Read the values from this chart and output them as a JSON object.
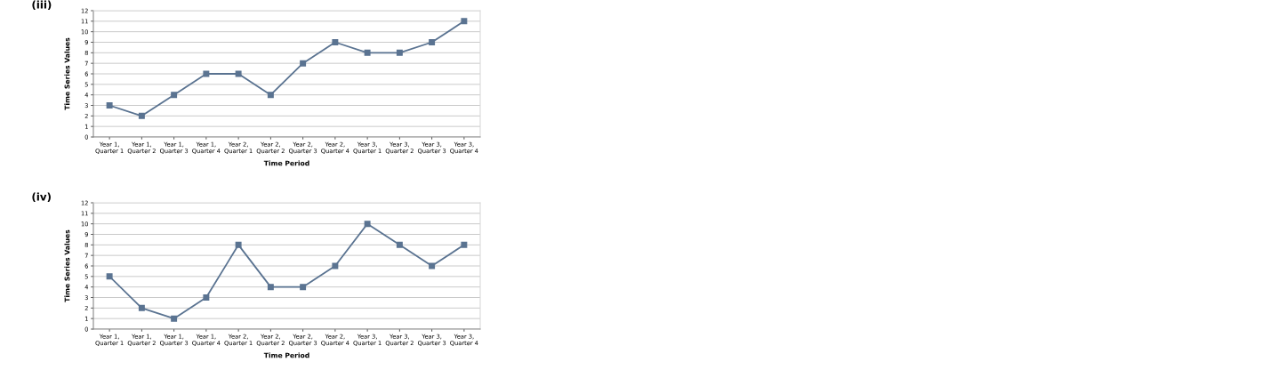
{
  "chart_data": [
    {
      "type": "line",
      "title": "(iii)",
      "xlabel": "Time Period",
      "ylabel": "Time Series Values",
      "categories": [
        "Year 1,\nQuarter 1",
        "Year 1,\nQuarter 2",
        "Year 1,\nQuarter 3",
        "Year 1,\nQuarter 4",
        "Year 2,\nQuarter 1",
        "Year 2,\nQuarter 2",
        "Year 2,\nQuarter 3",
        "Year 2,\nQuarter 4",
        "Year 3,\nQuarter 1",
        "Year 3,\nQuarter 2",
        "Year 3,\nQuarter 3",
        "Year 3,\nQuarter 4"
      ],
      "series": [
        {
          "color": "#5a7391",
          "values": [
            3,
            2,
            4,
            6,
            6,
            4,
            7,
            9,
            8,
            8,
            9,
            11
          ]
        }
      ],
      "ylim": [
        0,
        12
      ],
      "yticks": [
        0,
        1,
        2,
        3,
        4,
        5,
        6,
        7,
        8,
        9,
        10,
        11,
        12
      ],
      "grid": "y",
      "marker": "square",
      "line_style": "solid",
      "legend": false
    },
    {
      "type": "line",
      "title": "(iv)",
      "xlabel": "Time Period",
      "ylabel": "Time Series Values",
      "categories": [
        "Year 1,\nQuarter 1",
        "Year 1,\nQuarter 2",
        "Year 1,\nQuarter 3",
        "Year 1,\nQuarter 4",
        "Year 2,\nQuarter 1",
        "Year 2,\nQuarter 2",
        "Year 2,\nQuarter 3",
        "Year 2,\nQuarter 4",
        "Year 3,\nQuarter 1",
        "Year 3,\nQuarter 2",
        "Year 3,\nQuarter 3",
        "Year 3,\nQuarter 4"
      ],
      "series": [
        {
          "color": "#5a7391",
          "values": [
            5,
            2,
            1,
            3,
            8,
            4,
            4,
            6,
            10,
            8,
            6,
            8
          ]
        }
      ],
      "ylim": [
        0,
        12
      ],
      "yticks": [
        0,
        1,
        2,
        3,
        4,
        5,
        6,
        7,
        8,
        9,
        10,
        11,
        12
      ],
      "grid": "y",
      "marker": "square",
      "line_style": "solid",
      "legend": false
    }
  ]
}
